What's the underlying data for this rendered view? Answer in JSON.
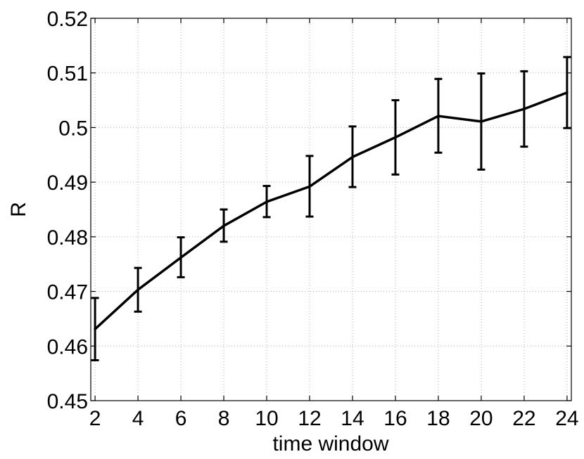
{
  "chart_data": {
    "type": "line",
    "title": "",
    "xlabel": "time window",
    "ylabel": "R",
    "xlim": [
      1.8,
      24.2
    ],
    "ylim": [
      0.45,
      0.52
    ],
    "xticks": [
      2,
      4,
      6,
      8,
      10,
      12,
      14,
      16,
      18,
      20,
      22,
      24
    ],
    "xtick_labels": [
      "2",
      "4",
      "6",
      "8",
      "10",
      "12",
      "14",
      "16",
      "18",
      "20",
      "22",
      "24"
    ],
    "yticks": [
      0.45,
      0.46,
      0.47,
      0.48,
      0.49,
      0.5,
      0.51,
      0.52
    ],
    "ytick_labels": [
      "0.45",
      "0.46",
      "0.47",
      "0.48",
      "0.49",
      "0.5",
      "0.51",
      "0.52"
    ],
    "grid": true,
    "series": [
      {
        "x": [
          2,
          4,
          6,
          8,
          10,
          12,
          14,
          16,
          18,
          20,
          22,
          24
        ],
        "values": [
          0.4631,
          0.4703,
          0.4762,
          0.482,
          0.4864,
          0.4892,
          0.4946,
          0.4982,
          0.5021,
          0.5011,
          0.5034,
          0.5064
        ],
        "err_low": [
          0.4574,
          0.4663,
          0.4726,
          0.4791,
          0.4836,
          0.4837,
          0.4891,
          0.4914,
          0.4954,
          0.4923,
          0.4965,
          0.4999
        ],
        "err_high": [
          0.4688,
          0.4743,
          0.4799,
          0.485,
          0.4893,
          0.4948,
          0.5002,
          0.505,
          0.5089,
          0.5099,
          0.5103,
          0.5129
        ],
        "color": "#000000"
      }
    ]
  }
}
